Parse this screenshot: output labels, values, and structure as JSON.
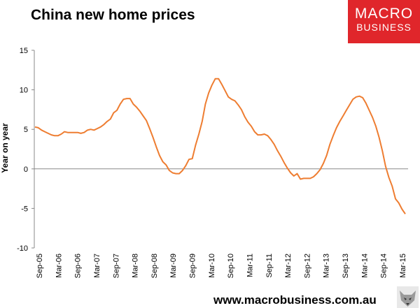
{
  "header": {
    "title": "China new home prices"
  },
  "logo": {
    "line1": "MACRO",
    "line2": "BUSINESS",
    "color": "#e0262b"
  },
  "footer": {
    "url": "www.macrobusiness.com.au",
    "icon": "wolf-icon"
  },
  "chart_data": {
    "type": "line",
    "title": "China new home prices",
    "ylabel": "Year on year",
    "xlabel": "",
    "ylim": [
      -10,
      15
    ],
    "yticks": [
      15,
      10,
      5,
      0,
      -5,
      -10
    ],
    "xticks": [
      "Sep-05",
      "Mar-06",
      "Sep-06",
      "Mar-07",
      "Sep-07",
      "Mar-08",
      "Sep-08",
      "Mar-09",
      "Sep-09",
      "Mar-10",
      "Sep-10",
      "Mar-11",
      "Sep-11",
      "Mar-12",
      "Sep-12",
      "Mar-13",
      "Sep-13",
      "Mar-14",
      "Sep-14",
      "Mar-15"
    ],
    "grid": false,
    "line_color": "#ee7d31",
    "series": [
      {
        "values": [
          5.3,
          5.2,
          4.9,
          4.7,
          4.5,
          4.3,
          4.2,
          4.2,
          4.4,
          4.7,
          4.6,
          4.6,
          4.6,
          4.6,
          4.5,
          4.6,
          4.9,
          5.0,
          4.9,
          5.1,
          5.3,
          5.6,
          6.0,
          6.3,
          7.1,
          7.4,
          8.2,
          8.8,
          8.9,
          8.9,
          8.2,
          7.8,
          7.3,
          6.7,
          6.1,
          5.1,
          4.0,
          2.8,
          1.7,
          0.9,
          0.5,
          -0.2,
          -0.5,
          -0.6,
          -0.6,
          -0.2,
          0.4,
          1.2,
          1.3,
          3.0,
          4.4,
          6.0,
          8.2,
          9.6,
          10.6,
          11.4,
          11.4,
          10.7,
          9.9,
          9.1,
          8.8,
          8.6,
          8.1,
          7.5,
          6.6,
          5.9,
          5.4,
          4.7,
          4.3,
          4.3,
          4.4,
          4.2,
          3.7,
          3.1,
          2.3,
          1.6,
          0.8,
          0.1,
          -0.5,
          -0.9,
          -0.6,
          -1.3,
          -1.2,
          -1.2,
          -1.2,
          -1.0,
          -0.6,
          -0.1,
          0.7,
          1.7,
          3.1,
          4.2,
          5.2,
          6.0,
          6.7,
          7.4,
          8.1,
          8.8,
          9.1,
          9.2,
          9.0,
          8.3,
          7.4,
          6.5,
          5.4,
          4.0,
          2.3,
          0.3,
          -1.1,
          -2.2,
          -3.8,
          -4.3,
          -5.1,
          -5.7
        ]
      }
    ]
  }
}
